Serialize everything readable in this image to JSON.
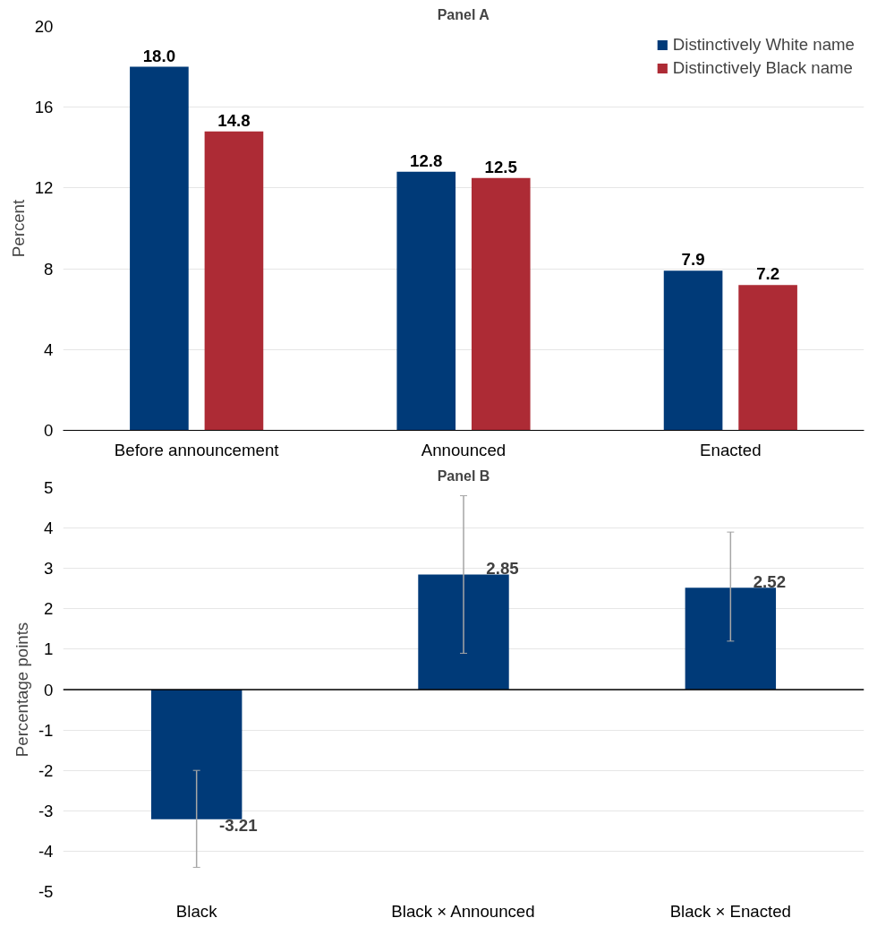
{
  "chart_data": [
    {
      "type": "bar",
      "title": "Panel A",
      "ylabel": "Percent",
      "categories": [
        "Before announcement",
        "Announced",
        "Enacted"
      ],
      "series": [
        {
          "name": "Distinctively White name",
          "color": "#003a78",
          "values": [
            18.0,
            12.8,
            7.9
          ],
          "value_labels": [
            "18.0",
            "12.8",
            "7.9"
          ]
        },
        {
          "name": "Distinctively Black name",
          "color": "#ad2b35",
          "values": [
            14.8,
            12.5,
            7.2
          ],
          "value_labels": [
            "14.8",
            "12.5",
            "7.2"
          ]
        }
      ],
      "ylim": [
        0,
        20
      ],
      "yticks": [
        0,
        4,
        8,
        12,
        16,
        20
      ],
      "grid": "y",
      "legend": "top right"
    },
    {
      "type": "bar",
      "title": "Panel B",
      "ylabel": "Percentage points",
      "categories": [
        "Black",
        "Black × Announced",
        "Black × Enacted"
      ],
      "series": [
        {
          "color": "#003a78",
          "values": [
            -3.21,
            2.85,
            2.52
          ],
          "value_labels": [
            "-3.21",
            "2.85",
            "2.52"
          ],
          "errors": [
            [
              -4.4,
              -2.0
            ],
            [
              0.9,
              4.8
            ],
            [
              1.2,
              3.9
            ]
          ]
        }
      ],
      "ylim": [
        -5,
        5
      ],
      "yticks": [
        -5,
        -4,
        -3,
        -2,
        -1,
        0,
        1,
        2,
        3,
        4,
        5
      ],
      "grid": "y",
      "ref_lines": [
        {
          "axis": "y",
          "value": 0,
          "color": "#000000"
        }
      ]
    }
  ]
}
